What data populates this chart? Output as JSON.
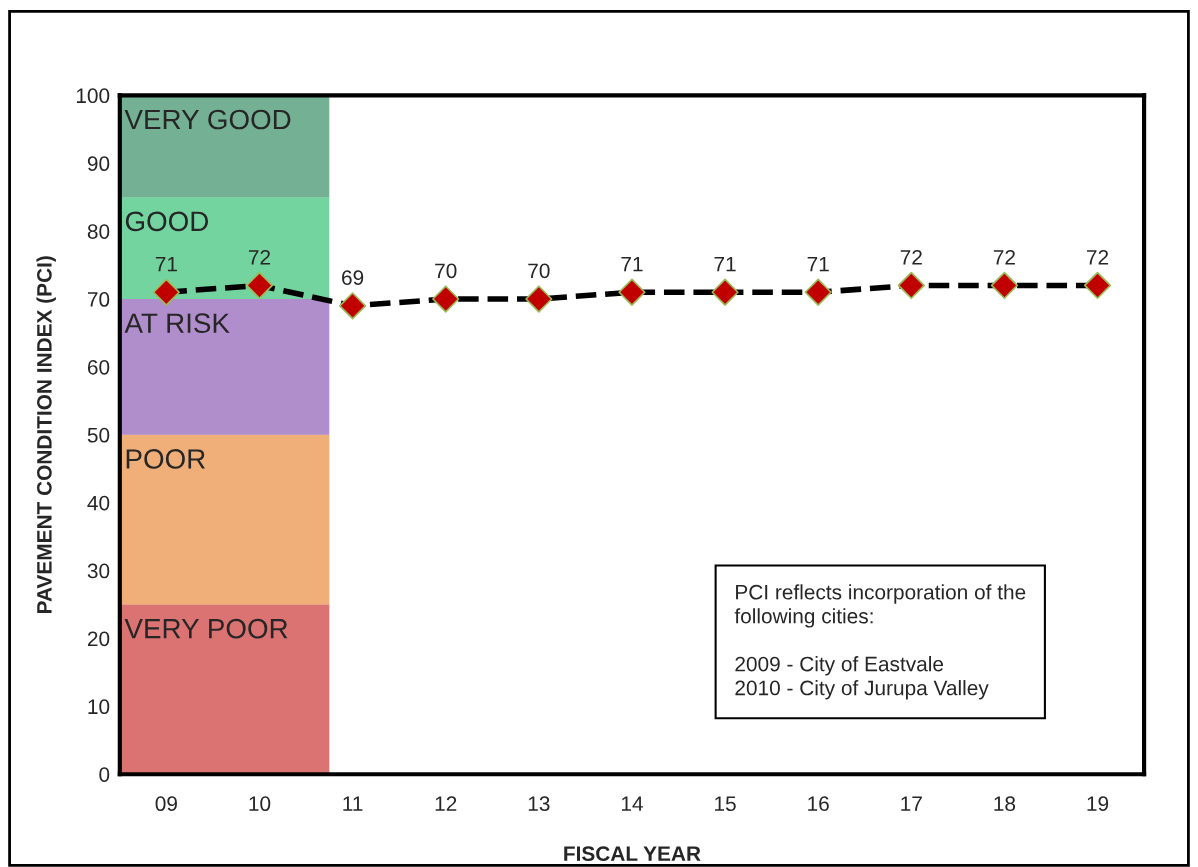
{
  "chart_data": {
    "type": "line",
    "xlabel": "FISCAL YEAR",
    "ylabel": "PAVEMENT CONDITION INDEX (PCI)",
    "categories": [
      "09",
      "10",
      "11",
      "12",
      "13",
      "14",
      "15",
      "16",
      "17",
      "18",
      "19"
    ],
    "series": [
      {
        "color": "#c00000",
        "values": [
          71,
          72,
          69,
          70,
          70,
          71,
          71,
          71,
          72,
          72,
          72
        ]
      }
    ],
    "ylim": [
      0,
      100
    ],
    "yticks": [
      0,
      10,
      20,
      30,
      40,
      50,
      60,
      70,
      80,
      90,
      100
    ],
    "marker": "diamond",
    "line_style": "dashed",
    "data_labels": true,
    "grid": false,
    "legend": false,
    "bands": [
      {
        "axis": "y",
        "from": 0,
        "to": 25,
        "label": "VERY POOR",
        "color": "#c00000"
      },
      {
        "axis": "y",
        "from": 25,
        "to": 50,
        "label": "POOR",
        "color": "#e46c0a"
      },
      {
        "axis": "y",
        "from": 50,
        "to": 70,
        "label": "AT RISK",
        "color": "#7030a0"
      },
      {
        "axis": "y",
        "from": 70,
        "to": 85,
        "label": "GOOD",
        "color": "#00b050"
      },
      {
        "axis": "y",
        "from": 85,
        "to": 100,
        "label": "VERY GOOD",
        "color": "#00703c"
      }
    ],
    "annotations": [
      "PCI reflects incorporation of the\nfollowing cities:\n\n2009 - City of Eastvale\n2010 - City of Jurupa Valley"
    ]
  }
}
